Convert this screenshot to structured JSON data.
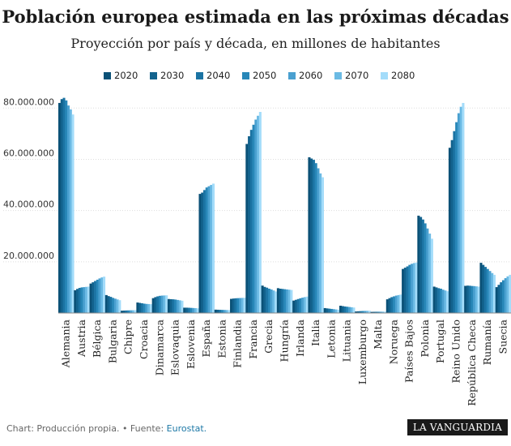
{
  "chart_data": {
    "type": "bar",
    "title": "Población europea estimada en las próximas décadas",
    "subtitle": "Proyección por país y década, en millones de habitantes",
    "categories": [
      "Alemania",
      "Austria",
      "Bélgica",
      "Bulgaria",
      "Chipre",
      "Croacia",
      "Dinamarca",
      "Eslovaquia",
      "Eslovenia",
      "España",
      "Estonia",
      "Finlandia",
      "Francia",
      "Grecia",
      "Hungría",
      "Irlanda",
      "Italia",
      "Letonia",
      "Lituania",
      "Luxemburgo",
      "Malta",
      "Noruega",
      "Países Bajos",
      "Polonia",
      "Portugal",
      "Reino Unido",
      "República Checa",
      "Rumanía",
      "Suecia"
    ],
    "series": [
      {
        "name": "2020",
        "color": "#0b5177",
        "values": [
          82000000,
          8900000,
          11500000,
          7000000,
          900000,
          4100000,
          5800000,
          5450000,
          2080000,
          46500000,
          1310000,
          5520000,
          66000000,
          10700000,
          9700000,
          4850000,
          60800000,
          1920000,
          2850000,
          600000,
          440000,
          5350000,
          17200000,
          38000000,
          10300000,
          64500000,
          10600000,
          19600000,
          10100000
        ]
      },
      {
        "name": "2030",
        "color": "#12628d",
        "values": [
          83500000,
          9400000,
          12000000,
          6600000,
          960000,
          3950000,
          6200000,
          5400000,
          2080000,
          47000000,
          1280000,
          5650000,
          69000000,
          10200000,
          9500000,
          5150000,
          60300000,
          1800000,
          2700000,
          680000,
          470000,
          5800000,
          17700000,
          37500000,
          10000000,
          67500000,
          10700000,
          18800000,
          11000000
        ]
      },
      {
        "name": "2040",
        "color": "#1b73a3",
        "values": [
          84000000,
          9800000,
          12500000,
          6300000,
          1000000,
          3800000,
          6500000,
          5350000,
          2050000,
          48000000,
          1250000,
          5750000,
          71500000,
          9900000,
          9400000,
          5450000,
          59800000,
          1700000,
          2550000,
          740000,
          490000,
          6200000,
          18200000,
          36500000,
          9700000,
          71000000,
          10650000,
          18000000,
          12000000
        ]
      },
      {
        "name": "2050",
        "color": "#2887b8",
        "values": [
          83000000,
          10000000,
          13000000,
          5900000,
          1030000,
          3650000,
          6700000,
          5250000,
          2000000,
          49000000,
          1220000,
          5800000,
          73500000,
          9500000,
          9300000,
          5750000,
          58500000,
          1600000,
          2450000,
          790000,
          500000,
          6500000,
          18800000,
          35000000,
          9500000,
          74500000,
          10550000,
          17200000,
          12800000
        ]
      },
      {
        "name": "2060",
        "color": "#4aa0d0",
        "values": [
          81000000,
          10100000,
          13500000,
          5600000,
          1060000,
          3550000,
          6800000,
          5100000,
          1950000,
          49500000,
          1200000,
          5850000,
          75500000,
          9200000,
          9200000,
          6000000,
          56500000,
          1500000,
          2350000,
          820000,
          510000,
          6800000,
          19200000,
          33000000,
          9100000,
          78000000,
          10500000,
          16400000,
          13600000
        ]
      },
      {
        "name": "2070",
        "color": "#6bbae4",
        "values": [
          79500000,
          10200000,
          13900000,
          5300000,
          1080000,
          3500000,
          6850000,
          4950000,
          1900000,
          50000000,
          1170000,
          5900000,
          77000000,
          8800000,
          9100000,
          6200000,
          54500000,
          1400000,
          2250000,
          850000,
          520000,
          7000000,
          19500000,
          31000000,
          8800000,
          80500000,
          10400000,
          15600000,
          14300000
        ]
      },
      {
        "name": "2080",
        "color": "#a3dcfa",
        "values": [
          77500000,
          10300000,
          14200000,
          5000000,
          1100000,
          3450000,
          6900000,
          4800000,
          1850000,
          50500000,
          1150000,
          5950000,
          78500000,
          8400000,
          9000000,
          6400000,
          53000000,
          1300000,
          2150000,
          870000,
          530000,
          7200000,
          19700000,
          29000000,
          8500000,
          82000000,
          10300000,
          14900000,
          14900000
        ]
      }
    ],
    "yticks": [
      "20.000.000",
      "40.000.000",
      "60.000.000",
      "80.000.000"
    ],
    "ytick_values": [
      20000000,
      40000000,
      60000000,
      80000000
    ],
    "ylim": [
      0,
      88000000
    ],
    "legend_position": "top-right",
    "grid": true
  },
  "footer": {
    "text": "Chart: Producción propia. • Fuente: ",
    "source": "Eurostat."
  },
  "brand": "LA VANGUARDIA"
}
